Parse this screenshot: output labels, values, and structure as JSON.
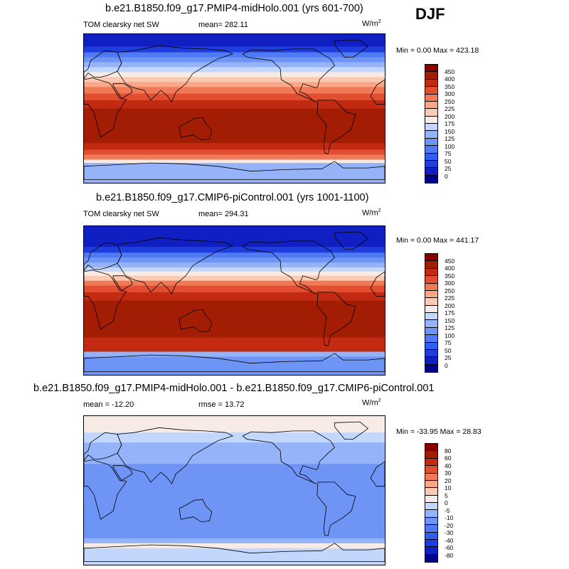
{
  "season": "DJF",
  "units_base": "W/m",
  "units_exp": "2",
  "panels": [
    {
      "title": "b.e21.B1850.f09_g17.PMIP4-midHolo.001 (yrs 601-700)",
      "left_label": "TOM clearsky net SW",
      "center_label": "mean= 282.11",
      "minmax": "Min =   0.00 Max = 423.18"
    },
    {
      "title": "b.e21.B1850.f09_g17.CMIP6-piControl.001 (yrs 1001-1100)",
      "left_label": "TOM clearsky net SW",
      "center_label": "mean= 294.31",
      "minmax": "Min =   0.00 Max = 441.17"
    },
    {
      "title": "b.e21.B1850.f09_g17.PMIP4-midHolo.001 - b.e21.B1850.f09_g17.CMIP6-piControl.001",
      "left_label": "mean = -12.20",
      "center_label": "rmse =  13.72",
      "minmax": "Min = -33.95 Max =  28.83"
    }
  ],
  "chart_data": [
    {
      "type": "heatmap",
      "title": "b.e21.B1850.f09_g17.PMIP4-midHolo.001 (yrs 601-700)",
      "variable": "TOM clearsky net SW",
      "units": "W/m2",
      "mean": 282.11,
      "min": 0.0,
      "max": 423.18,
      "levels": [
        0,
        25,
        50,
        75,
        100,
        125,
        150,
        175,
        200,
        225,
        250,
        300,
        350,
        400,
        450
      ],
      "colors": [
        "#00008c",
        "#0f1fc2",
        "#1f3ddd",
        "#2f5ef0",
        "#4f7af3",
        "#6e94f5",
        "#94b3f8",
        "#c3d6fb",
        "#f8ebe6",
        "#fbcab2",
        "#f9a787",
        "#f07a58",
        "#e24e30",
        "#c32a12",
        "#a31d04",
        "#860000"
      ],
      "lat_bands": [
        {
          "lat_top": 90,
          "lat_bottom": 75,
          "value": 5
        },
        {
          "lat_top": 75,
          "lat_bottom": 68,
          "value": 40
        },
        {
          "lat_top": 68,
          "lat_bottom": 62,
          "value": 75
        },
        {
          "lat_top": 62,
          "lat_bottom": 56,
          "value": 110
        },
        {
          "lat_top": 56,
          "lat_bottom": 50,
          "value": 140
        },
        {
          "lat_top": 50,
          "lat_bottom": 44,
          "value": 165
        },
        {
          "lat_top": 44,
          "lat_bottom": 38,
          "value": 190
        },
        {
          "lat_top": 38,
          "lat_bottom": 32,
          "value": 215
        },
        {
          "lat_top": 32,
          "lat_bottom": 26,
          "value": 240
        },
        {
          "lat_top": 26,
          "lat_bottom": 18,
          "value": 275
        },
        {
          "lat_top": 18,
          "lat_bottom": 10,
          "value": 325
        },
        {
          "lat_top": 10,
          "lat_bottom": 0,
          "value": 360
        },
        {
          "lat_top": 0,
          "lat_bottom": -42,
          "value": 410
        },
        {
          "lat_top": -42,
          "lat_bottom": -50,
          "value": 360
        },
        {
          "lat_top": -50,
          "lat_bottom": -56,
          "value": 325
        },
        {
          "lat_top": -56,
          "lat_bottom": -62,
          "value": 275
        },
        {
          "lat_top": -62,
          "lat_bottom": -66,
          "value": 190
        },
        {
          "lat_top": -66,
          "lat_bottom": -90,
          "value": 140
        }
      ]
    },
    {
      "type": "heatmap",
      "title": "b.e21.B1850.f09_g17.CMIP6-piControl.001 (yrs 1001-1100)",
      "variable": "TOM clearsky net SW",
      "units": "W/m2",
      "mean": 294.31,
      "min": 0.0,
      "max": 441.17,
      "levels": [
        0,
        25,
        50,
        75,
        100,
        125,
        150,
        175,
        200,
        225,
        250,
        300,
        350,
        400,
        450
      ],
      "colors": [
        "#00008c",
        "#0f1fc2",
        "#1f3ddd",
        "#2f5ef0",
        "#4f7af3",
        "#6e94f5",
        "#94b3f8",
        "#c3d6fb",
        "#f8ebe6",
        "#fbcab2",
        "#f9a787",
        "#f07a58",
        "#e24e30",
        "#c32a12",
        "#a31d04",
        "#860000"
      ],
      "lat_bands": [
        {
          "lat_top": 90,
          "lat_bottom": 65,
          "value": 5
        },
        {
          "lat_top": 65,
          "lat_bottom": 58,
          "value": 40
        },
        {
          "lat_top": 58,
          "lat_bottom": 52,
          "value": 75
        },
        {
          "lat_top": 52,
          "lat_bottom": 46,
          "value": 110
        },
        {
          "lat_top": 46,
          "lat_bottom": 40,
          "value": 140
        },
        {
          "lat_top": 40,
          "lat_bottom": 35,
          "value": 165
        },
        {
          "lat_top": 35,
          "lat_bottom": 30,
          "value": 190
        },
        {
          "lat_top": 30,
          "lat_bottom": 24,
          "value": 215
        },
        {
          "lat_top": 24,
          "lat_bottom": 18,
          "value": 260
        },
        {
          "lat_top": 18,
          "lat_bottom": 10,
          "value": 310
        },
        {
          "lat_top": 10,
          "lat_bottom": 0,
          "value": 360
        },
        {
          "lat_top": 0,
          "lat_bottom": -45,
          "value": 420
        },
        {
          "lat_top": -45,
          "lat_bottom": -55,
          "value": 380
        },
        {
          "lat_top": -55,
          "lat_bottom": -62,
          "value": 360
        },
        {
          "lat_top": -62,
          "lat_bottom": -68,
          "value": 140
        },
        {
          "lat_top": -68,
          "lat_bottom": -90,
          "value": 120
        }
      ]
    },
    {
      "type": "heatmap",
      "title": "b.e21.B1850.f09_g17.PMIP4-midHolo.001 - b.e21.B1850.f09_g17.CMIP6-piControl.001",
      "units": "W/m2",
      "mean": -12.2,
      "rmse": 13.72,
      "min": -33.95,
      "max": 28.83,
      "levels": [
        -80,
        -60,
        -40,
        -30,
        -20,
        -10,
        -5,
        0,
        5,
        10,
        20,
        30,
        40,
        60,
        80
      ],
      "colors": [
        "#00008c",
        "#0f1fc2",
        "#1f3ddd",
        "#2f5ef0",
        "#4f7af3",
        "#6e94f5",
        "#94b3f8",
        "#c3d6fb",
        "#f8ebe6",
        "#fbcab2",
        "#f9a787",
        "#f07a58",
        "#e24e30",
        "#c32a12",
        "#a31d04",
        "#860000"
      ],
      "lat_bands": [
        {
          "lat_top": 90,
          "lat_bottom": 70,
          "value": 2
        },
        {
          "lat_top": 70,
          "lat_bottom": 58,
          "value": -3
        },
        {
          "lat_top": 58,
          "lat_bottom": 45,
          "value": -7
        },
        {
          "lat_top": 45,
          "lat_bottom": 32,
          "value": -7
        },
        {
          "lat_top": 32,
          "lat_bottom": 22,
          "value": -12
        },
        {
          "lat_top": 22,
          "lat_bottom": -58,
          "value": -15
        },
        {
          "lat_top": -58,
          "lat_bottom": -64,
          "value": -7
        },
        {
          "lat_top": -64,
          "lat_bottom": -70,
          "value": 3
        },
        {
          "lat_top": -70,
          "lat_bottom": -90,
          "value": -3
        }
      ]
    }
  ],
  "colorbars": [
    {
      "tick_labels": [
        "450",
        "400",
        "350",
        "300",
        "250",
        "225",
        "200",
        "175",
        "150",
        "125",
        "100",
        "75",
        "50",
        "25",
        "0"
      ]
    },
    {
      "tick_labels": [
        "450",
        "400",
        "350",
        "300",
        "250",
        "225",
        "200",
        "175",
        "150",
        "125",
        "100",
        "75",
        "50",
        "25",
        "0"
      ]
    },
    {
      "tick_labels": [
        "80",
        "60",
        "40",
        "30",
        "20",
        "10",
        "5",
        "0",
        "-5",
        "-10",
        "-20",
        "-30",
        "-40",
        "-60",
        "-80"
      ]
    }
  ]
}
